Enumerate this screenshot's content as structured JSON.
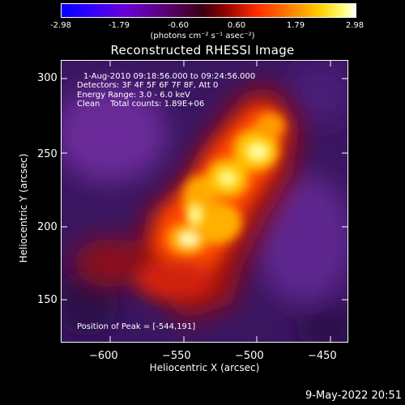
{
  "colorbar": {
    "ticks": [
      "-2.98",
      "-1.79",
      "-0.60",
      "0.60",
      "1.79",
      "2.98"
    ],
    "units": "(photons cm⁻² s⁻¹ asec⁻²)"
  },
  "title": "Reconstructed RHESSI Image",
  "info": {
    "time_range": "1-Aug-2010 09:18:56.000 to 09:24:56.000",
    "detectors": "Detectors: 3F 4F 5F 6F 7F 8F, Att 0",
    "energy": "Energy Range: 3.0 - 6.0 keV",
    "clean": "Clean    Total counts: 1.89E+06",
    "peak": "Position of Peak = [-544,191]"
  },
  "axes": {
    "xlabel": "Heliocentric X (arcsec)",
    "ylabel": "Heliocentric Y (arcsec)",
    "xticks": [
      "−600",
      "−550",
      "−500",
      "−450"
    ],
    "yticks": [
      "300",
      "250",
      "200",
      "150"
    ]
  },
  "datestamp": "9-May-2022 20:51",
  "colors": {
    "background": "#000000",
    "haze": "#5a1e8a",
    "peak": "#ffffff"
  }
}
